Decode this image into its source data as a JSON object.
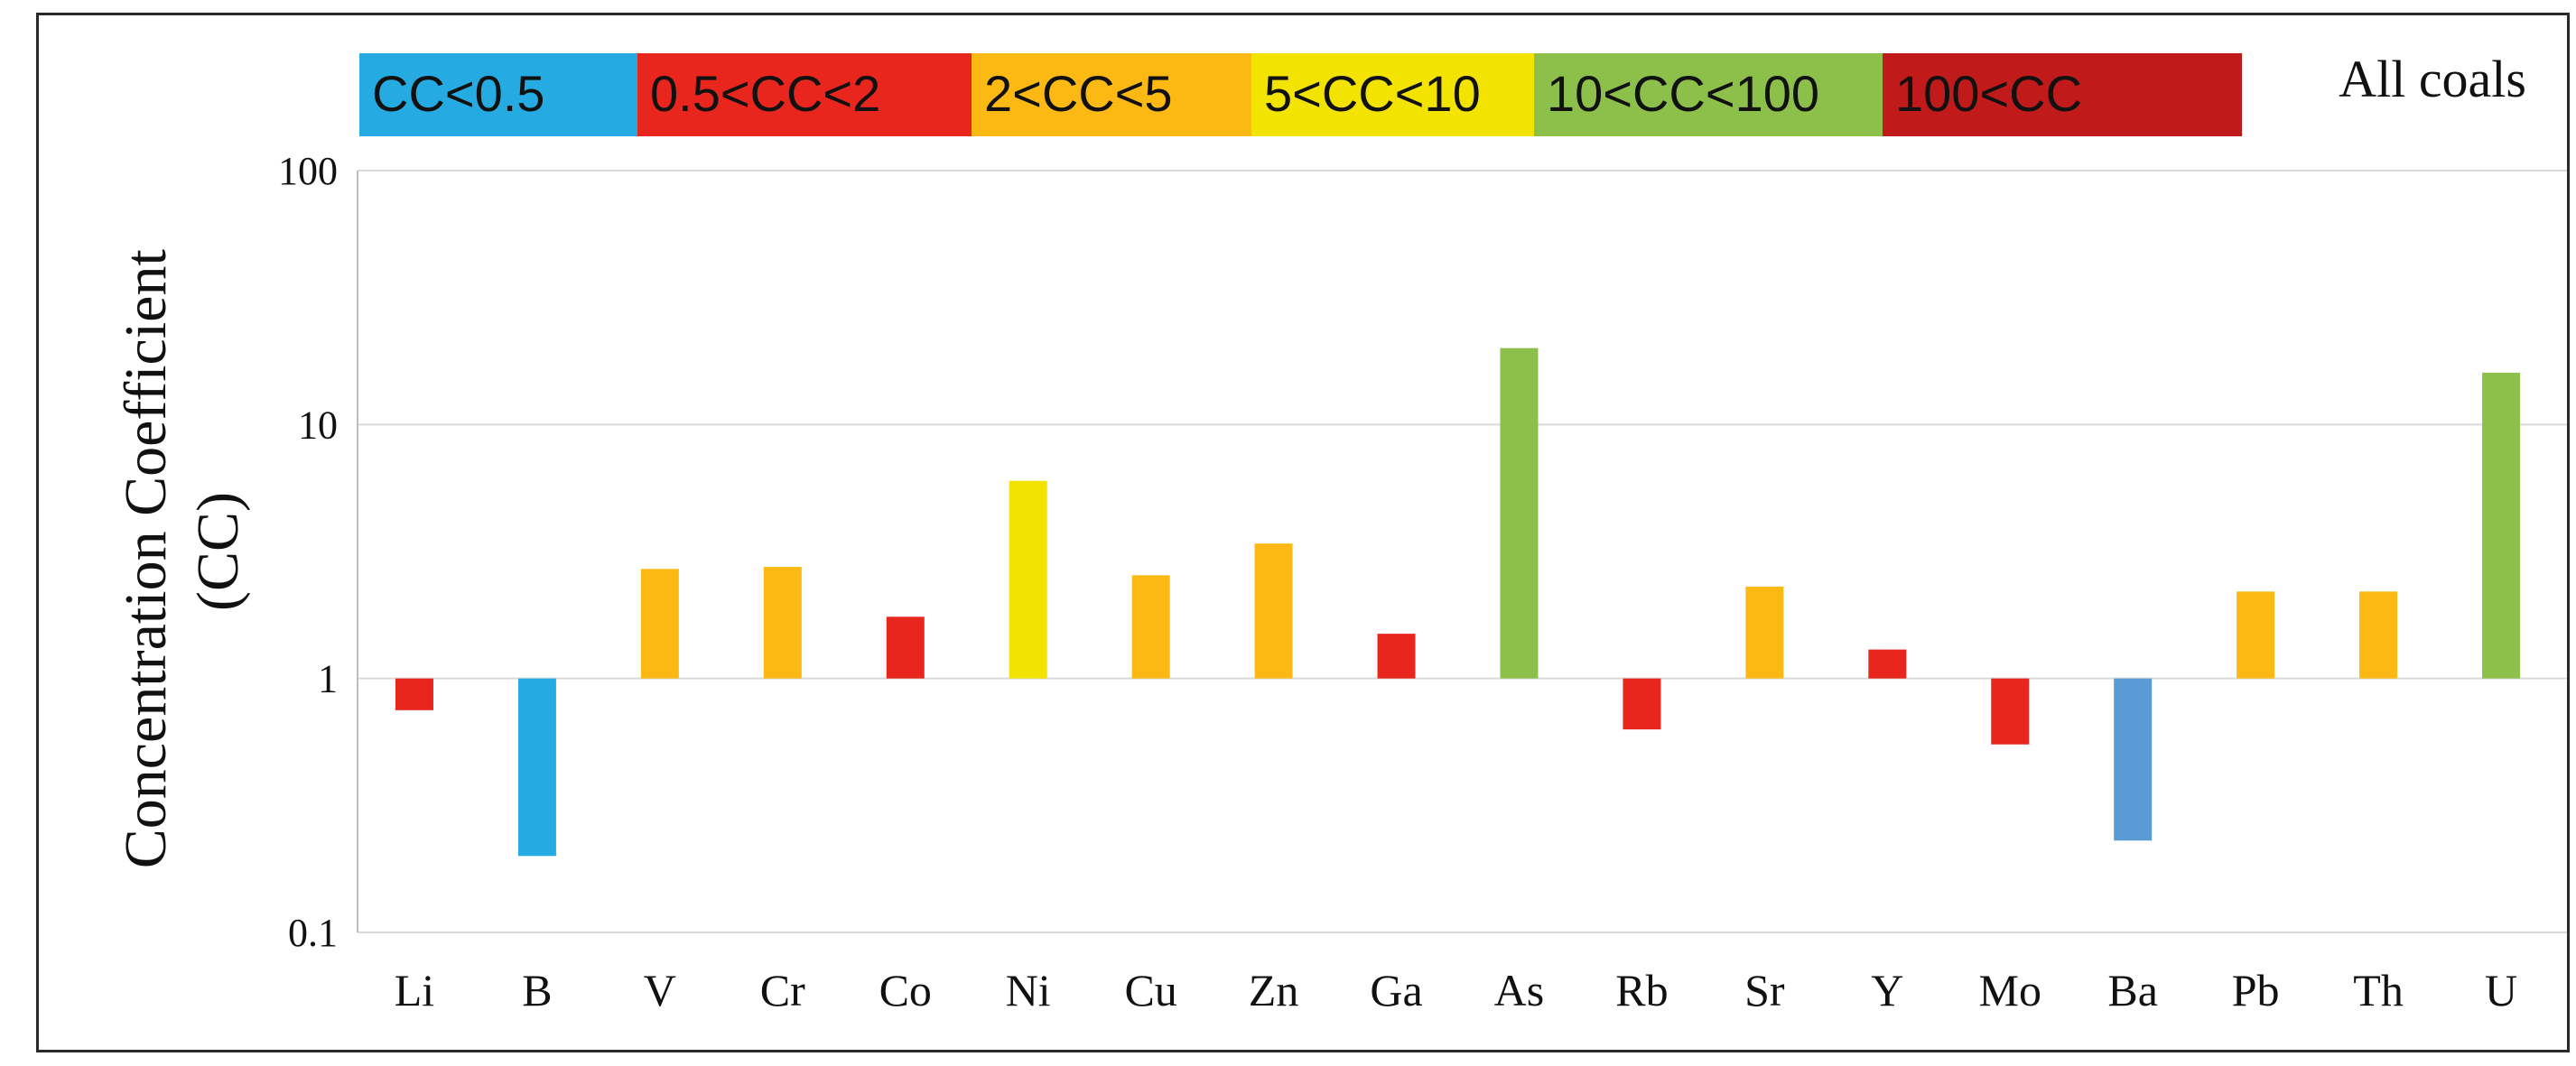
{
  "chart_data": {
    "type": "bar",
    "title": "",
    "subtitle": "All coals",
    "xlabel": "",
    "ylabel_lines": [
      "Concentration Coefficient",
      "(CC)"
    ],
    "yscale": "log",
    "ylim": [
      0.1,
      100
    ],
    "yticks": [
      0.1,
      1,
      10,
      100
    ],
    "ytick_labels": [
      "0.1",
      "1",
      "10",
      "100"
    ],
    "baseline": 1,
    "grid": "horizontal",
    "categories": [
      "Li",
      "B",
      "V",
      "Cr",
      "Co",
      "Ni",
      "Cu",
      "Zn",
      "Ga",
      "As",
      "Rb",
      "Sr",
      "Y",
      "Mo",
      "Ba",
      "Pb",
      "Th",
      "U"
    ],
    "values": [
      0.75,
      0.2,
      2.7,
      2.75,
      1.75,
      6.0,
      2.55,
      3.4,
      1.5,
      20.0,
      0.63,
      2.3,
      1.3,
      0.55,
      0.23,
      2.2,
      2.2,
      16.0
    ],
    "bar_colors": [
      "#e8261e",
      "#25aae1",
      "#fdb913",
      "#fdb913",
      "#e8261e",
      "#f2e300",
      "#fdb913",
      "#fdb913",
      "#e8261e",
      "#8cc04a",
      "#e8261e",
      "#fdb913",
      "#e8261e",
      "#e8261e",
      "#5b9bd5",
      "#fdb913",
      "#fdb913",
      "#8cc04a"
    ],
    "legend": [
      {
        "label": "CC<0.5",
        "color": "#25aae1"
      },
      {
        "label": "0.5<CC<2",
        "color": "#e8261e"
      },
      {
        "label": "2<CC<5",
        "color": "#fdb913"
      },
      {
        "label": "5<CC<10",
        "color": "#f2e300"
      },
      {
        "label": "10<CC<100",
        "color": "#8cc04a"
      },
      {
        "label": "100<CC",
        "color": "#c01a1a"
      }
    ],
    "legend_position": "top"
  }
}
